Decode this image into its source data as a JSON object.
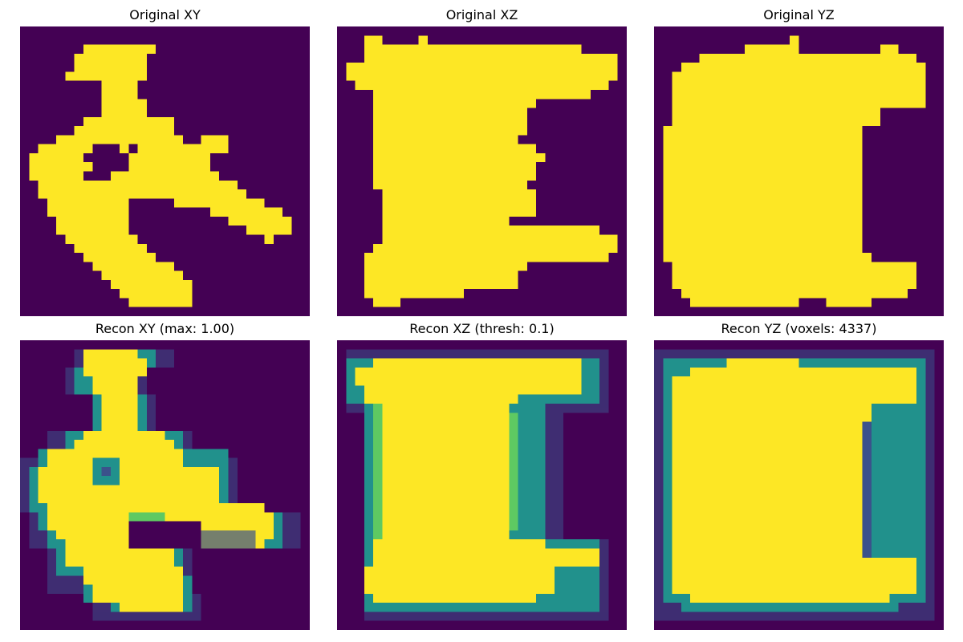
{
  "figure": {
    "colormap": "viridis",
    "colors": {
      "background_low": "#440154",
      "high": "#fde725",
      "mid_teal": "#21918c",
      "mid_green": "#5ec962",
      "dark_blue": "#3b528b"
    }
  },
  "chart_data": [
    {
      "type": "heatmap",
      "title": "Original XY",
      "grid": "binary mask (yellow = occupied voxel)",
      "xlabel": "",
      "ylabel": "",
      "axes": "off"
    },
    {
      "type": "heatmap",
      "title": "Original XZ",
      "xlabel": "",
      "ylabel": "",
      "axes": "off"
    },
    {
      "type": "heatmap",
      "title": "Original YZ",
      "xlabel": "",
      "ylabel": "",
      "axes": "off"
    },
    {
      "type": "heatmap",
      "title": "Recon XY (max: 1.00)",
      "xlabel": "",
      "ylabel": "",
      "axes": "off"
    },
    {
      "type": "heatmap",
      "title": "Recon XZ (thresh: 0.1)",
      "xlabel": "",
      "ylabel": "",
      "axes": "off"
    },
    {
      "type": "heatmap",
      "title": "Recon YZ (voxels: 4337)",
      "xlabel": "",
      "ylabel": "",
      "axes": "off"
    }
  ]
}
